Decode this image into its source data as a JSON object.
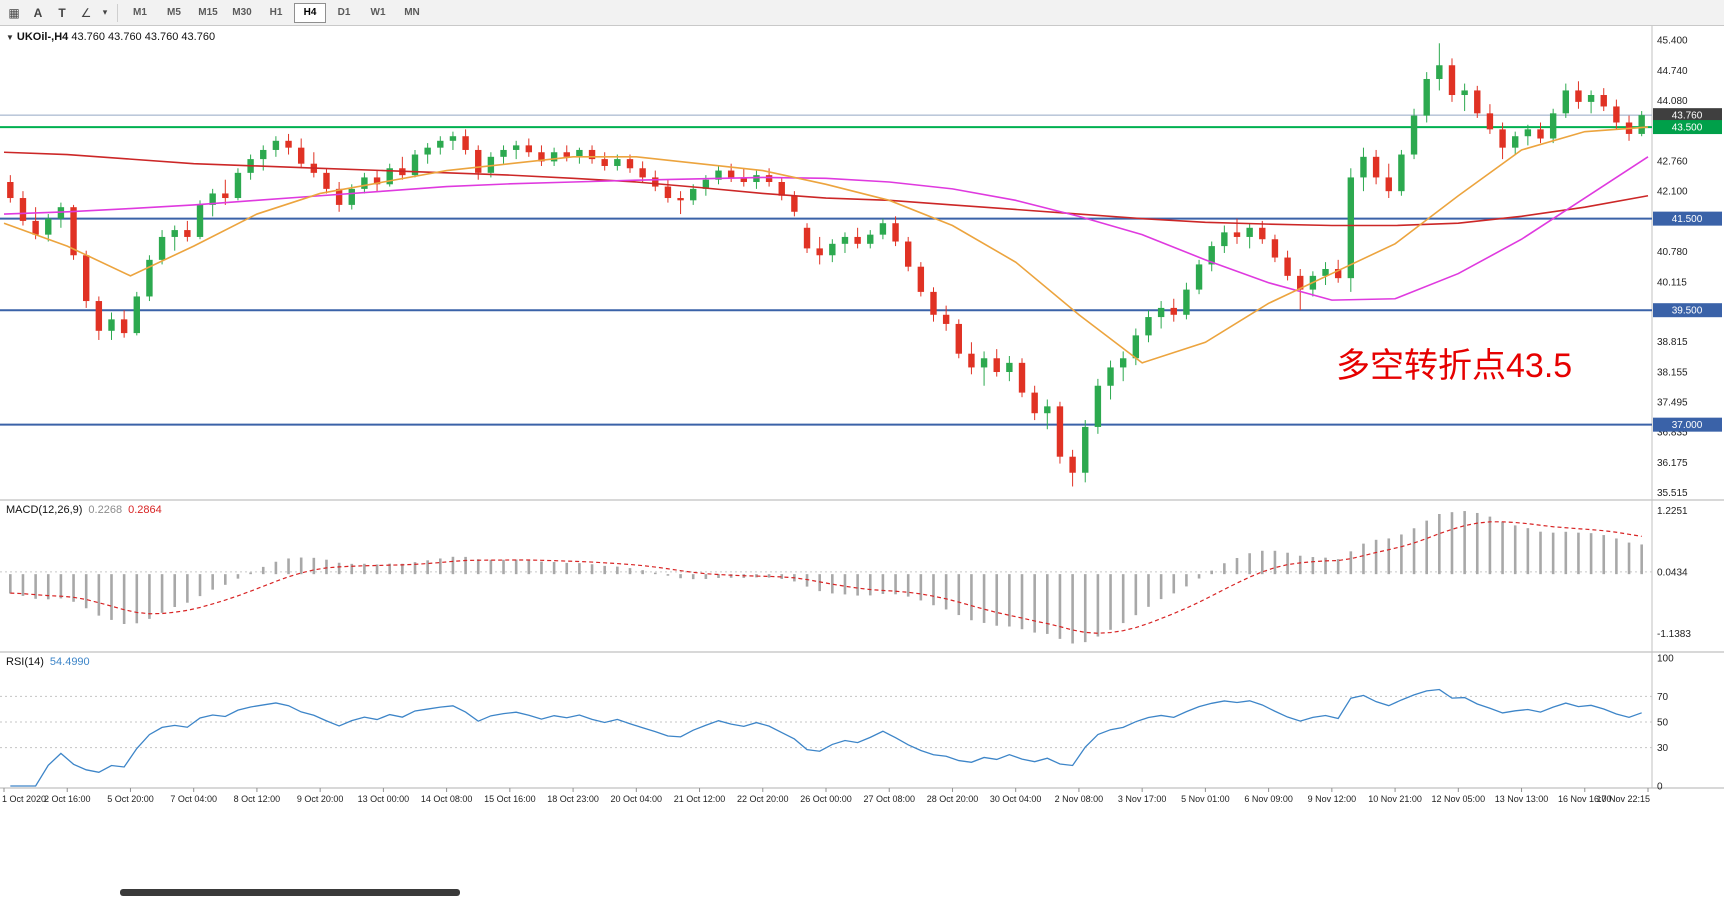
{
  "toolbar": {
    "tools": [
      {
        "name": "chart-grid-icon",
        "glyph": "▦"
      },
      {
        "name": "text-label-tool-button",
        "glyph": "A"
      },
      {
        "name": "text-tool-button",
        "glyph": "T"
      },
      {
        "name": "drawing-tool-button",
        "glyph": "∠"
      },
      {
        "name": "drawing-dropdown-icon",
        "glyph": "▾"
      }
    ],
    "timeframes": [
      "M1",
      "M5",
      "M15",
      "M30",
      "H1",
      "H4",
      "D1",
      "W1",
      "MN"
    ],
    "active_timeframe": "H4"
  },
  "chart": {
    "dropdown_glyph": "▼",
    "symbol_period": "UKOil-,H4",
    "ohlc_text": "43.760 43.760 43.760 43.760",
    "annotation": {
      "text": "多空转折点43.5",
      "color": "#e60000"
    }
  },
  "indicators": {
    "macd": {
      "name": "MACD(12,26,9)",
      "value1": "0.2268",
      "value2": "0.2864",
      "axis_labels": [
        "1.2251",
        "0.0434",
        "-1.1383"
      ],
      "histogram_color": "#a8a8a8",
      "signal_color": "#d82424"
    },
    "rsi": {
      "name": "RSI(14)",
      "value": "54.4990",
      "axis_labels": [
        "100",
        "70",
        "50",
        "30",
        "0"
      ],
      "levels": [
        70,
        50,
        30
      ],
      "line_color": "#3d85c8"
    }
  },
  "chart_data": {
    "type": "candlestick",
    "symbol": "UKOil",
    "timeframe": "H4",
    "up_color": "#2ca94f",
    "down_color": "#e03224",
    "price_axis": {
      "min": 35.42,
      "max": 45.62,
      "labels": [
        "45.400",
        "44.740",
        "44.080",
        "42.760",
        "42.100",
        "40.780",
        "40.115",
        "38.815",
        "38.155",
        "37.495",
        "36.835",
        "36.175",
        "35.515"
      ]
    },
    "price_badges": [
      {
        "text": "43.760",
        "value": 43.76,
        "color": "#3f3f3f"
      },
      {
        "text": "43.500",
        "value": 43.5,
        "color": "#00a04a"
      },
      {
        "text": "41.500",
        "value": 41.5,
        "color": "#3a62a8"
      },
      {
        "text": "39.500",
        "value": 39.5,
        "color": "#3a62a8"
      },
      {
        "text": "37.000",
        "value": 37.0,
        "color": "#3a62a8"
      }
    ],
    "hlines": [
      {
        "value": 43.5,
        "color": "#00b050",
        "width": 2
      },
      {
        "value": 41.5,
        "color": "#3a62a8",
        "width": 2
      },
      {
        "value": 39.5,
        "color": "#3a62a8",
        "width": 2
      },
      {
        "value": 37.0,
        "color": "#3a62a8",
        "width": 2
      }
    ],
    "bid_line": {
      "value": 43.76,
      "color": "#94a8c4",
      "width": 1
    },
    "bars_per_label": 5,
    "time_labels": [
      "1 Oct 2020",
      "2 Oct 16:00",
      "5 Oct 20:00",
      "7 Oct 04:00",
      "8 Oct 12:00",
      "9 Oct 20:00",
      "13 Oct 00:00",
      "14 Oct 08:00",
      "15 Oct 16:00",
      "18 Oct 23:00",
      "20 Oct 04:00",
      "21 Oct 12:00",
      "22 Oct 20:00",
      "26 Oct 00:00",
      "27 Oct 08:00",
      "28 Oct 20:00",
      "30 Oct 04:00",
      "2 Nov 08:00",
      "3 Nov 17:00",
      "5 Nov 01:00",
      "6 Nov 09:00",
      "9 Nov 12:00",
      "10 Nov 21:00",
      "12 Nov 05:00",
      "13 Nov 13:00",
      "16 Nov 16:00",
      "17 Nov 22:15"
    ],
    "candles": [
      [
        42.3,
        42.45,
        41.85,
        41.95
      ],
      [
        41.95,
        42.1,
        41.35,
        41.45
      ],
      [
        41.45,
        41.75,
        41.05,
        41.15
      ],
      [
        41.15,
        41.6,
        41.0,
        41.5
      ],
      [
        41.5,
        41.85,
        41.3,
        41.75
      ],
      [
        41.75,
        41.8,
        40.6,
        40.7
      ],
      [
        40.7,
        40.8,
        39.55,
        39.7
      ],
      [
        39.7,
        39.8,
        38.85,
        39.05
      ],
      [
        39.05,
        39.45,
        38.85,
        39.3
      ],
      [
        39.3,
        39.5,
        38.9,
        39.0
      ],
      [
        39.0,
        39.9,
        38.95,
        39.8
      ],
      [
        39.8,
        40.7,
        39.7,
        40.6
      ],
      [
        40.6,
        41.25,
        40.5,
        41.1
      ],
      [
        41.1,
        41.35,
        40.8,
        41.25
      ],
      [
        41.25,
        41.45,
        41.0,
        41.1
      ],
      [
        41.1,
        41.9,
        41.05,
        41.8
      ],
      [
        41.8,
        42.15,
        41.55,
        42.05
      ],
      [
        42.05,
        42.35,
        41.8,
        41.95
      ],
      [
        41.95,
        42.6,
        41.9,
        42.5
      ],
      [
        42.5,
        42.9,
        42.35,
        42.8
      ],
      [
        42.8,
        43.1,
        42.55,
        43.0
      ],
      [
        43.0,
        43.3,
        42.85,
        43.2
      ],
      [
        43.2,
        43.35,
        42.9,
        43.05
      ],
      [
        43.05,
        43.25,
        42.6,
        42.7
      ],
      [
        42.7,
        42.95,
        42.4,
        42.5
      ],
      [
        42.5,
        42.6,
        42.05,
        42.15
      ],
      [
        42.15,
        42.3,
        41.65,
        41.8
      ],
      [
        41.8,
        42.25,
        41.7,
        42.15
      ],
      [
        42.15,
        42.5,
        42.05,
        42.4
      ],
      [
        42.4,
        42.55,
        42.1,
        42.25
      ],
      [
        42.25,
        42.7,
        42.2,
        42.6
      ],
      [
        42.6,
        42.85,
        42.35,
        42.45
      ],
      [
        42.45,
        43.0,
        42.4,
        42.9
      ],
      [
        42.9,
        43.15,
        42.7,
        43.05
      ],
      [
        43.05,
        43.3,
        42.9,
        43.2
      ],
      [
        43.2,
        43.4,
        43.0,
        43.3
      ],
      [
        43.3,
        43.45,
        42.9,
        43.0
      ],
      [
        43.0,
        43.1,
        42.35,
        42.5
      ],
      [
        42.5,
        42.95,
        42.4,
        42.85
      ],
      [
        42.85,
        43.1,
        42.7,
        43.0
      ],
      [
        43.0,
        43.2,
        42.8,
        43.1
      ],
      [
        43.1,
        43.25,
        42.85,
        42.95
      ],
      [
        42.95,
        43.1,
        42.65,
        42.75
      ],
      [
        42.75,
        43.05,
        42.65,
        42.95
      ],
      [
        42.95,
        43.1,
        42.75,
        42.85
      ],
      [
        42.85,
        43.05,
        42.7,
        43.0
      ],
      [
        43.0,
        43.1,
        42.7,
        42.8
      ],
      [
        42.8,
        42.95,
        42.55,
        42.65
      ],
      [
        42.65,
        42.9,
        42.55,
        42.8
      ],
      [
        42.8,
        42.9,
        42.5,
        42.6
      ],
      [
        42.6,
        42.75,
        42.3,
        42.4
      ],
      [
        42.4,
        42.55,
        42.1,
        42.2
      ],
      [
        42.2,
        42.35,
        41.85,
        41.95
      ],
      [
        41.95,
        42.1,
        41.6,
        41.9
      ],
      [
        41.9,
        42.25,
        41.8,
        42.15
      ],
      [
        42.15,
        42.45,
        42.0,
        42.35
      ],
      [
        42.35,
        42.65,
        42.25,
        42.55
      ],
      [
        42.55,
        42.7,
        42.3,
        42.4
      ],
      [
        42.4,
        42.6,
        42.2,
        42.3
      ],
      [
        42.3,
        42.55,
        42.15,
        42.45
      ],
      [
        42.45,
        42.6,
        42.2,
        42.3
      ],
      [
        42.3,
        42.4,
        41.9,
        42.0
      ],
      [
        42.0,
        42.1,
        41.55,
        41.65
      ],
      [
        41.3,
        41.4,
        40.75,
        40.85
      ],
      [
        40.85,
        41.1,
        40.5,
        40.7
      ],
      [
        40.7,
        41.05,
        40.55,
        40.95
      ],
      [
        40.95,
        41.2,
        40.75,
        41.1
      ],
      [
        41.1,
        41.3,
        40.85,
        40.95
      ],
      [
        40.95,
        41.25,
        40.85,
        41.15
      ],
      [
        41.15,
        41.5,
        41.05,
        41.4
      ],
      [
        41.4,
        41.55,
        40.9,
        41.0
      ],
      [
        41.0,
        41.1,
        40.35,
        40.45
      ],
      [
        40.45,
        40.55,
        39.8,
        39.9
      ],
      [
        39.9,
        40.0,
        39.25,
        39.4
      ],
      [
        39.4,
        39.6,
        39.05,
        39.2
      ],
      [
        39.2,
        39.3,
        38.45,
        38.55
      ],
      [
        38.55,
        38.8,
        38.1,
        38.25
      ],
      [
        38.25,
        38.6,
        37.85,
        38.45
      ],
      [
        38.45,
        38.65,
        38.05,
        38.15
      ],
      [
        38.15,
        38.5,
        37.95,
        38.35
      ],
      [
        38.35,
        38.45,
        37.6,
        37.7
      ],
      [
        37.7,
        37.85,
        37.1,
        37.25
      ],
      [
        37.25,
        37.55,
        36.9,
        37.4
      ],
      [
        37.4,
        37.5,
        36.15,
        36.3
      ],
      [
        36.3,
        36.45,
        35.65,
        35.95
      ],
      [
        35.95,
        37.1,
        35.74,
        36.95
      ],
      [
        36.95,
        38.0,
        36.8,
        37.85
      ],
      [
        37.85,
        38.4,
        37.55,
        38.25
      ],
      [
        38.25,
        38.6,
        37.95,
        38.45
      ],
      [
        38.45,
        39.1,
        38.3,
        38.95
      ],
      [
        38.95,
        39.5,
        38.8,
        39.35
      ],
      [
        39.35,
        39.7,
        39.1,
        39.55
      ],
      [
        39.55,
        39.75,
        39.25,
        39.4
      ],
      [
        39.4,
        40.1,
        39.3,
        39.95
      ],
      [
        39.95,
        40.6,
        39.85,
        40.5
      ],
      [
        40.5,
        41.0,
        40.35,
        40.9
      ],
      [
        40.9,
        41.35,
        40.75,
        41.2
      ],
      [
        41.2,
        41.5,
        40.95,
        41.1
      ],
      [
        41.1,
        41.4,
        40.85,
        41.3
      ],
      [
        41.3,
        41.45,
        40.95,
        41.05
      ],
      [
        41.05,
        41.15,
        40.55,
        40.65
      ],
      [
        40.65,
        40.8,
        40.15,
        40.25
      ],
      [
        40.25,
        40.4,
        39.5,
        39.95
      ],
      [
        39.95,
        40.35,
        39.8,
        40.25
      ],
      [
        40.25,
        40.55,
        40.05,
        40.4
      ],
      [
        40.4,
        40.6,
        40.1,
        40.2
      ],
      [
        40.2,
        42.6,
        39.9,
        42.4
      ],
      [
        42.4,
        43.05,
        42.1,
        42.85
      ],
      [
        42.85,
        43.0,
        42.25,
        42.4
      ],
      [
        42.4,
        42.7,
        41.95,
        42.1
      ],
      [
        42.1,
        43.0,
        42.0,
        42.9
      ],
      [
        42.9,
        43.9,
        42.8,
        43.75
      ],
      [
        43.75,
        44.7,
        43.6,
        44.55
      ],
      [
        44.55,
        45.33,
        44.3,
        44.85
      ],
      [
        44.85,
        45.0,
        44.05,
        44.2
      ],
      [
        44.2,
        44.45,
        43.85,
        44.3
      ],
      [
        44.3,
        44.4,
        43.7,
        43.8
      ],
      [
        43.8,
        44.0,
        43.35,
        43.45
      ],
      [
        43.45,
        43.6,
        42.8,
        43.05
      ],
      [
        43.05,
        43.4,
        42.9,
        43.3
      ],
      [
        43.3,
        43.55,
        43.1,
        43.45
      ],
      [
        43.45,
        43.6,
        43.15,
        43.25
      ],
      [
        43.25,
        43.9,
        43.15,
        43.8
      ],
      [
        43.8,
        44.45,
        43.7,
        44.3
      ],
      [
        44.3,
        44.5,
        43.9,
        44.05
      ],
      [
        44.05,
        44.3,
        43.8,
        44.2
      ],
      [
        44.2,
        44.35,
        43.85,
        43.95
      ],
      [
        43.95,
        44.1,
        43.45,
        43.6
      ],
      [
        43.6,
        43.75,
        43.2,
        43.35
      ],
      [
        43.35,
        43.85,
        43.3,
        43.76
      ]
    ],
    "moving_averages": [
      {
        "name": "ma-slow-red",
        "color": "#cc2727",
        "width": 1.6,
        "step": 5,
        "points": [
          42.95,
          42.9,
          42.8,
          42.7,
          42.65,
          42.6,
          42.55,
          42.5,
          42.45,
          42.38,
          42.3,
          42.18,
          42.05,
          41.95,
          41.9,
          41.8,
          41.7,
          41.6,
          41.5,
          41.42,
          41.38,
          41.35,
          41.35,
          41.4,
          41.55,
          41.75,
          42.0
        ]
      },
      {
        "name": "ma-medium-magenta",
        "color": "#df3adf",
        "width": 1.6,
        "step": 5,
        "points": [
          41.6,
          41.65,
          41.72,
          41.8,
          41.9,
          42.0,
          42.1,
          42.2,
          42.26,
          42.3,
          42.34,
          42.37,
          42.4,
          42.38,
          42.3,
          42.15,
          41.9,
          41.55,
          41.15,
          40.6,
          40.1,
          39.72,
          39.75,
          40.3,
          41.05,
          41.95,
          42.85
        ]
      },
      {
        "name": "ma-fast-orange",
        "color": "#eca43e",
        "width": 1.6,
        "step": 5,
        "points": [
          41.4,
          40.9,
          40.25,
          40.9,
          41.6,
          42.05,
          42.3,
          42.55,
          42.7,
          42.85,
          42.85,
          42.7,
          42.55,
          42.25,
          41.9,
          41.35,
          40.55,
          39.4,
          38.35,
          38.8,
          39.65,
          40.3,
          40.95,
          42.0,
          43.0,
          43.4,
          43.5
        ]
      }
    ],
    "indicator_warmup_closes": [
      43.9,
      43.6,
      43.3,
      43.1,
      42.9,
      42.8,
      42.7,
      42.6,
      42.55,
      42.5,
      42.45,
      42.4,
      42.4,
      42.35,
      42.35,
      42.3,
      42.3,
      42.3,
      42.3,
      42.3
    ]
  }
}
